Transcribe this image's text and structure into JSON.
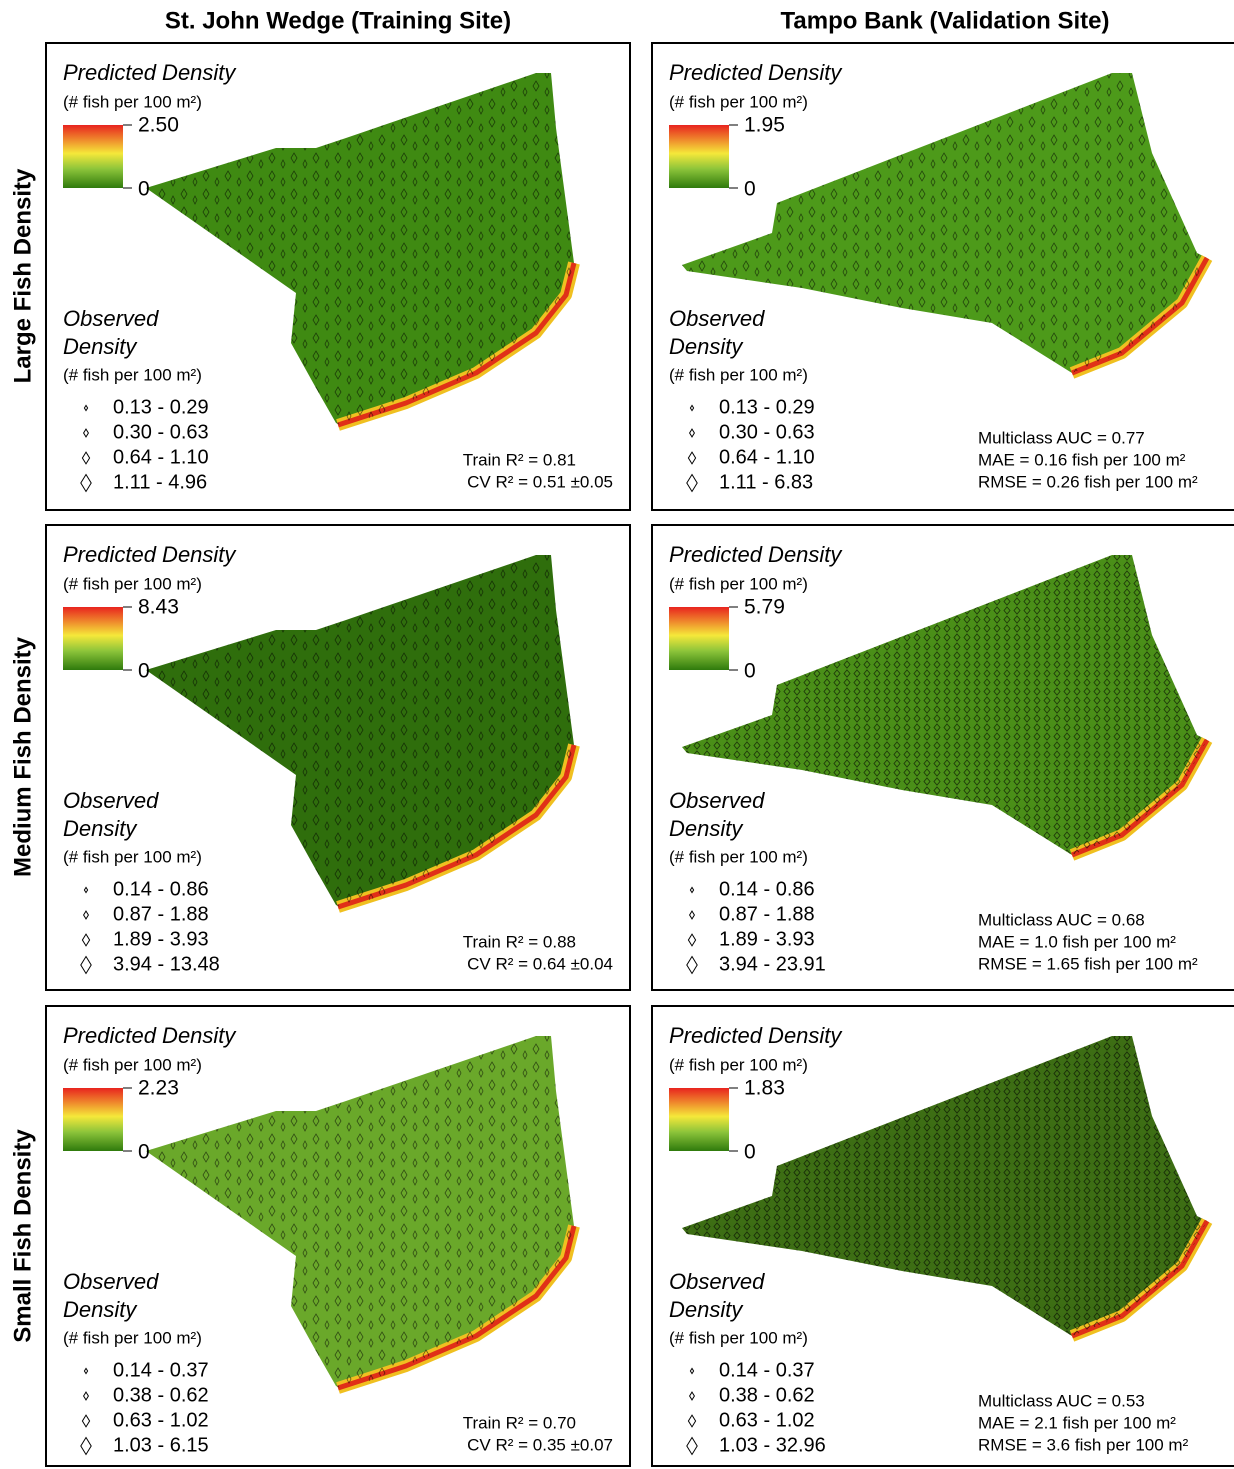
{
  "columns": [
    "St. John Wedge (Training Site)",
    "Tampo Bank (Validation Site)"
  ],
  "rows": [
    "Large Fish Density",
    "Medium Fish Density",
    "Small Fish Density"
  ],
  "panels": [
    {
      "predicted_title": "Predicted Density",
      "predicted_unit": "(# fish per 100 m²)",
      "scale_max": "2.50",
      "scale_min": "0",
      "observed_title": [
        "Observed",
        "Density"
      ],
      "observed_unit": "(# fish per 100 m²)",
      "classes": [
        "0.13 - 0.29",
        "0.30 - 0.63",
        "0.64 - 1.10",
        "1.11 - 4.96"
      ],
      "stats": [
        "Train R² = 0.81",
        "CV R² = 0.51 ±0.05"
      ]
    },
    {
      "predicted_title": "Predicted Density",
      "predicted_unit": "(# fish per 100 m²)",
      "scale_max": "1.95",
      "scale_min": "0",
      "observed_title": [
        "Observed",
        "Density"
      ],
      "observed_unit": "(# fish per 100 m²)",
      "classes": [
        "0.13 - 0.29",
        "0.30 - 0.63",
        "0.64 - 1.10",
        "1.11 - 6.83"
      ],
      "stats": [
        "Multiclass AUC = 0.77",
        "MAE = 0.16 fish per 100 m²",
        "RMSE = 0.26 fish per 100 m²"
      ]
    },
    {
      "predicted_title": "Predicted Density",
      "predicted_unit": "(# fish per 100 m²)",
      "scale_max": "8.43",
      "scale_min": "0",
      "observed_title": [
        "Observed",
        "Density"
      ],
      "observed_unit": "(# fish per 100 m²)",
      "classes": [
        "0.14 - 0.86",
        "0.87 - 1.88",
        "1.89 - 3.93",
        "3.94 - 13.48"
      ],
      "stats": [
        "Train R² = 0.88",
        "CV R² = 0.64 ±0.04"
      ]
    },
    {
      "predicted_title": "Predicted Density",
      "predicted_unit": "(# fish per 100 m²)",
      "scale_max": "5.79",
      "scale_min": "0",
      "observed_title": [
        "Observed",
        "Density"
      ],
      "observed_unit": "(# fish per 100 m²)",
      "classes": [
        "0.14 - 0.86",
        "0.87 - 1.88",
        "1.89 - 3.93",
        "3.94 - 23.91"
      ],
      "stats": [
        "Multiclass AUC = 0.68",
        "MAE = 1.0 fish per 100 m²",
        "RMSE = 1.65 fish per 100 m²"
      ]
    },
    {
      "predicted_title": "Predicted Density",
      "predicted_unit": "(# fish per 100 m²)",
      "scale_max": "2.23",
      "scale_min": "0",
      "observed_title": [
        "Observed",
        "Density"
      ],
      "observed_unit": "(# fish per 100 m²)",
      "classes": [
        "0.14 - 0.37",
        "0.38 - 0.62",
        "0.63 - 1.02",
        "1.03 - 6.15"
      ],
      "stats": [
        "Train R² = 0.70",
        "CV R² = 0.35 ±0.07"
      ]
    },
    {
      "predicted_title": "Predicted Density",
      "predicted_unit": "(# fish per 100 m²)",
      "scale_max": "1.83",
      "scale_min": "0",
      "observed_title": [
        "Observed",
        "Density"
      ],
      "observed_unit": "(# fish per 100 m²)",
      "classes": [
        "0.14 - 0.37",
        "0.38 - 0.62",
        "0.63 - 1.02",
        "1.03 - 32.96"
      ],
      "stats": [
        "Multiclass AUC = 0.53",
        "MAE = 2.1 fish per 100 m²",
        "RMSE = 3.6 fish per 100 m²"
      ]
    }
  ]
}
